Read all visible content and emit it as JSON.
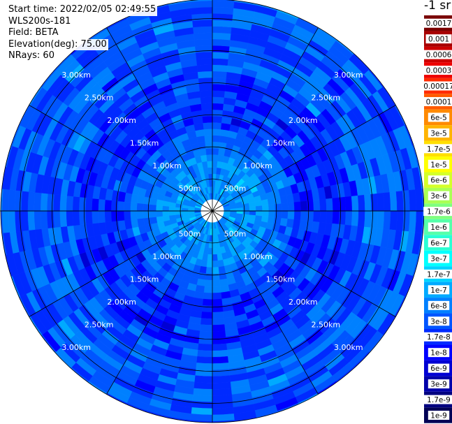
{
  "info": {
    "start_time": "Start time: 2022/02/05 02:49:55",
    "instrument": "WLS200s-181",
    "field": "Field: BETA",
    "elevation": "Elevation(deg): 75.00",
    "nrays": "NRays: 60"
  },
  "colorbar": {
    "unit": "-1 sr",
    "bins": [
      {
        "label": "0.0017",
        "color": "#7a0000"
      },
      {
        "label": "0.001",
        "color": "#a80000"
      },
      {
        "label": "0.0006",
        "color": "#cc0000"
      },
      {
        "label": "0.0003",
        "color": "#ee0000"
      },
      {
        "label": "0.00017",
        "color": "#ff2a00"
      },
      {
        "label": "0.0001",
        "color": "#ff5a00"
      },
      {
        "label": "6e-5",
        "color": "#ff8a00"
      },
      {
        "label": "3e-5",
        "color": "#ffb400"
      },
      {
        "label": "1.7e-5",
        "color": "#ffdf00"
      },
      {
        "label": "1e-5",
        "color": "#ffff00"
      },
      {
        "label": "6e-6",
        "color": "#d4ff2a"
      },
      {
        "label": "3e-6",
        "color": "#aaff55"
      },
      {
        "label": "1.7e-6",
        "color": "#7fff7f"
      },
      {
        "label": "1e-6",
        "color": "#55ffaa"
      },
      {
        "label": "6e-7",
        "color": "#2affd4"
      },
      {
        "label": "3e-7",
        "color": "#00ffff"
      },
      {
        "label": "1.7e-7",
        "color": "#00d4ff"
      },
      {
        "label": "1e-7",
        "color": "#00aaff"
      },
      {
        "label": "6e-8",
        "color": "#0080ff"
      },
      {
        "label": "3e-8",
        "color": "#0055ff"
      },
      {
        "label": "1.7e-8",
        "color": "#002aff"
      },
      {
        "label": "1e-8",
        "color": "#0000ff"
      },
      {
        "label": "6e-9",
        "color": "#0000d4"
      },
      {
        "label": "3e-9",
        "color": "#0000aa"
      },
      {
        "label": "1.7e-9",
        "color": "#000080"
      },
      {
        "label": "1e-9",
        "color": "#000055"
      }
    ]
  },
  "chart_data": {
    "type": "heatmap",
    "subtype": "polar-ppi",
    "n_rays": 60,
    "range_rings_km": [
      0.5,
      1.0,
      1.5,
      2.0,
      2.5,
      3.0
    ],
    "range_ring_labels": [
      "500m",
      "1.00km",
      "1.50km",
      "2.00km",
      "2.50km",
      "3.00km"
    ],
    "max_range_km": 3.3,
    "gate_km": 0.1,
    "spoke_count": 12,
    "field": "BETA",
    "dominant_value_ranges": [
      {
        "range_km": [
          0.0,
          0.9
        ],
        "typical_bins": [
          "1e-7",
          "6e-8"
        ]
      },
      {
        "range_km": [
          0.9,
          1.3
        ],
        "typical_bins": [
          "6e-8",
          "3e-8"
        ]
      },
      {
        "range_km": [
          1.3,
          2.2
        ],
        "typical_bins": [
          "1.7e-8",
          "1e-8",
          "3e-8"
        ]
      },
      {
        "range_km": [
          2.2,
          3.3
        ],
        "typical_bins": [
          "3e-8",
          "6e-8",
          "1.7e-8"
        ]
      }
    ]
  }
}
